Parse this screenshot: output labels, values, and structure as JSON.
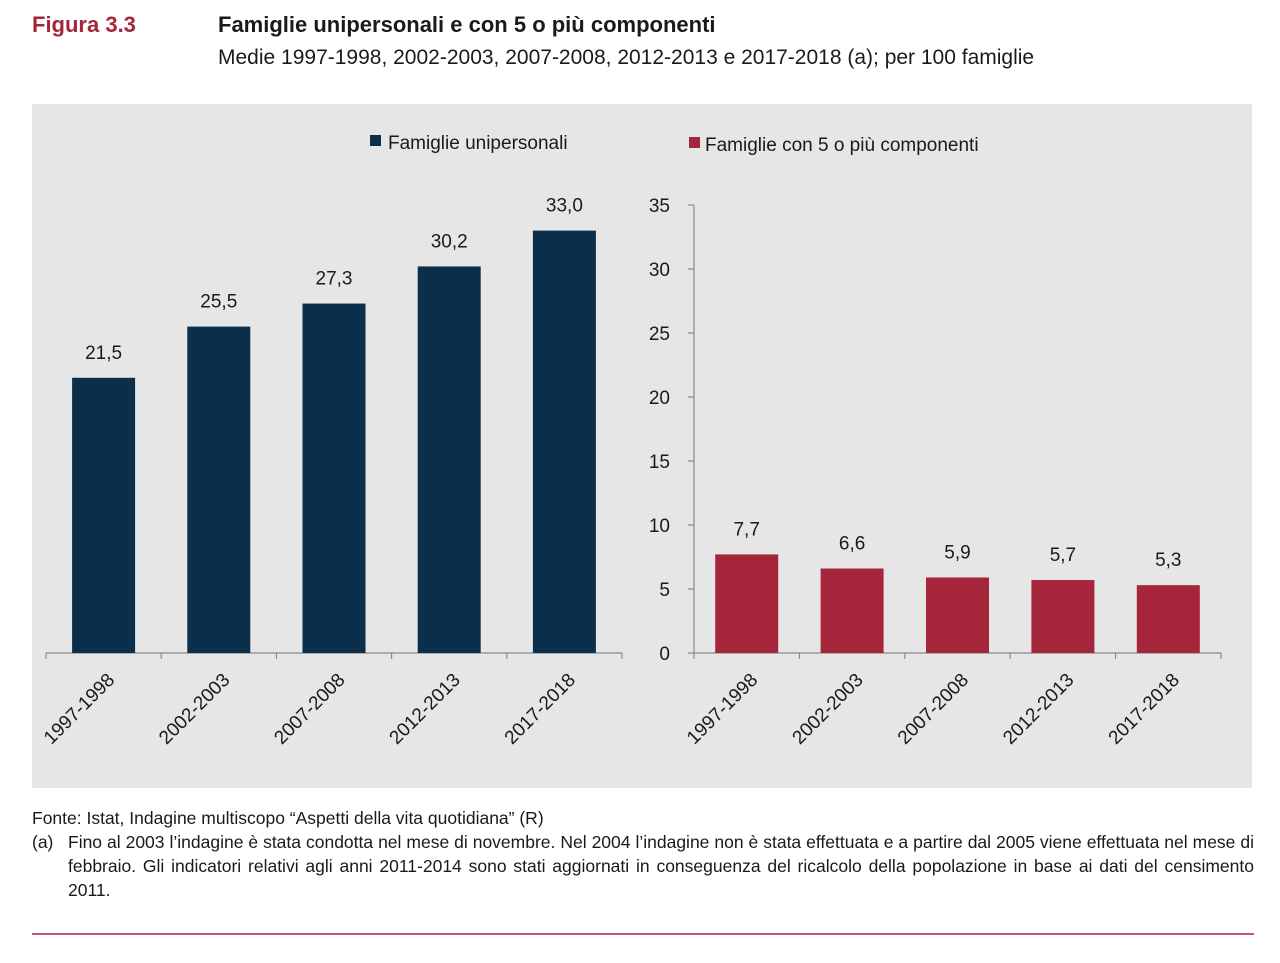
{
  "figure": {
    "label": "Figura 3.3",
    "title": "Famiglie unipersonali e con 5 o più componenti",
    "subtitle": "Medie 1997-1998, 2002-2003, 2007-2008, 2012-2013 e 2017-2018 (a); per 100 famiglie"
  },
  "colors": {
    "series1": "#0b2e4a",
    "series2": "#a5263b",
    "panel": "#e6e6e6"
  },
  "chart_data": [
    {
      "type": "bar",
      "categories": [
        "1997-1998",
        "2002-2003",
        "2007-2008",
        "2012-2013",
        "2017-2018"
      ],
      "series": [
        {
          "name": "Famiglie unipersonali",
          "values": [
            21.5,
            25.5,
            27.3,
            30.2,
            33.0
          ]
        }
      ],
      "value_labels": [
        "21,5",
        "25,5",
        "27,3",
        "30,2",
        "33,0"
      ],
      "ylim": [
        0,
        35
      ],
      "y_axis_visible": false,
      "grid": false,
      "legend": "top"
    },
    {
      "type": "bar",
      "categories": [
        "1997-1998",
        "2002-2003",
        "2007-2008",
        "2012-2013",
        "2017-2018"
      ],
      "series": [
        {
          "name": "Famiglie con 5 o più componenti",
          "values": [
            7.7,
            6.6,
            5.9,
            5.7,
            5.3
          ]
        }
      ],
      "value_labels": [
        "7,7",
        "6,6",
        "5,9",
        "5,7",
        "5,3"
      ],
      "ylim": [
        0,
        35
      ],
      "yticks": [
        0,
        5,
        10,
        15,
        20,
        25,
        30,
        35
      ],
      "y_axis_visible": true,
      "grid": false,
      "legend": "top"
    }
  ],
  "notes": {
    "source": "Fonte: Istat, Indagine multiscopo “Aspetti della vita quotidiana” (R)",
    "a_tag": "(a)",
    "a_text": "Fino al 2003 l’indagine è stata condotta nel mese di novembre. Nel 2004 l’indagine non è stata effettuata e a partire dal 2005 viene effettuata nel mese di febbraio. Gli indicatori relativi agli anni 2011-2014 sono stati aggiornati in conseguenza del ricalcolo della popolazione in base ai dati del censimento 2011."
  }
}
